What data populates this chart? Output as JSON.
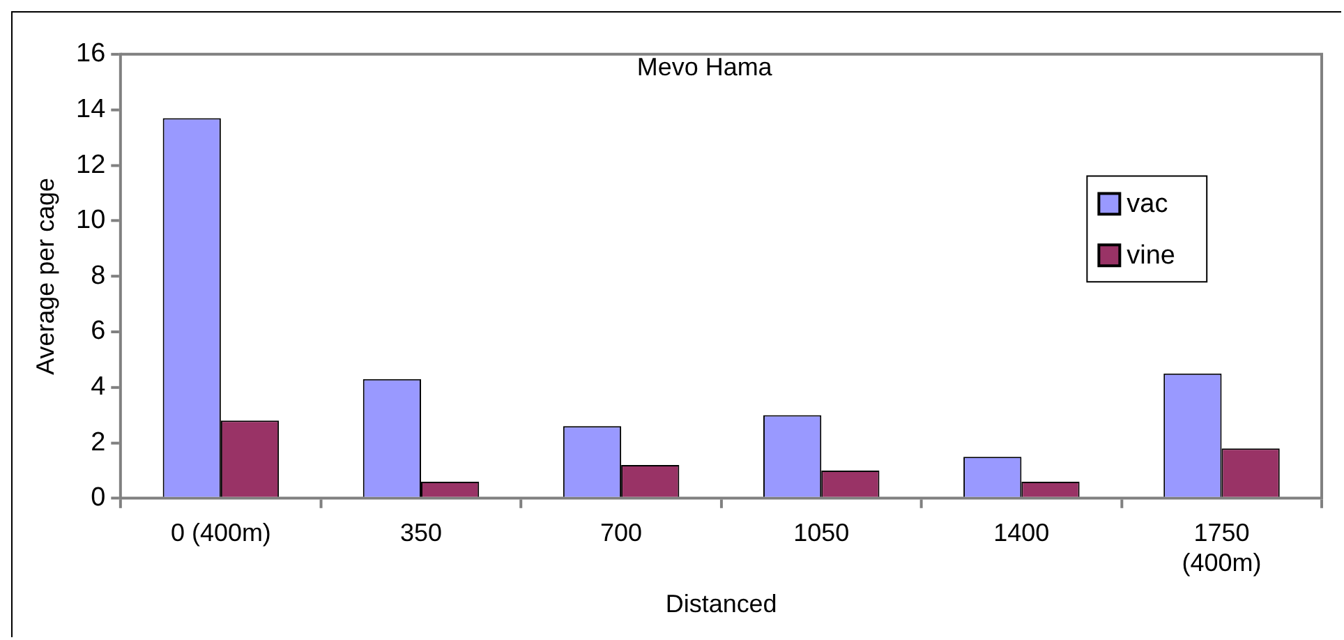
{
  "chart_data": {
    "type": "bar",
    "title": "Mevo Hama",
    "xlabel": "Distanced",
    "ylabel": "Average per cage",
    "categories": [
      "0 (400m)",
      "350",
      "700",
      "1050",
      "1400",
      "1750\n(400m)"
    ],
    "series": [
      {
        "name": "vac",
        "color": "#9999ff",
        "values": [
          13.7,
          4.3,
          2.6,
          3.0,
          1.5,
          4.5
        ]
      },
      {
        "name": "vine",
        "color": "#993366",
        "values": [
          2.8,
          0.6,
          1.2,
          1.0,
          0.6,
          1.8
        ]
      }
    ],
    "ylim": [
      0,
      16
    ],
    "yticks": [
      0,
      2,
      4,
      6,
      8,
      10,
      12,
      14,
      16
    ],
    "grid": false,
    "legend": "right"
  }
}
